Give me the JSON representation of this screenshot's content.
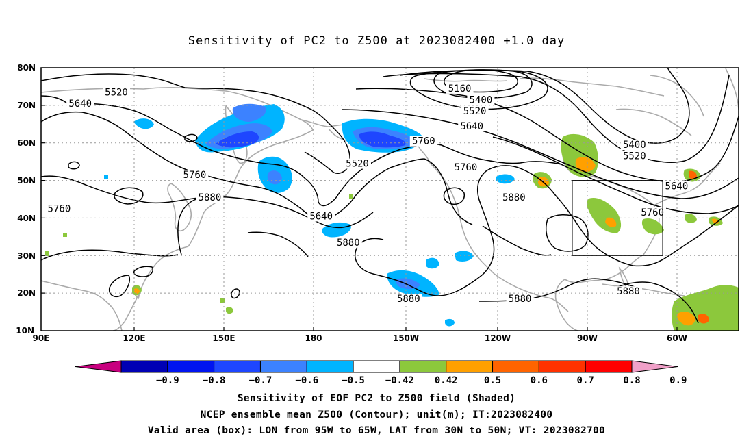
{
  "title": "Sensitivity of PC2 to Z500 at 2023082400 +1.0 day",
  "map": {
    "lat_labels": [
      "80N",
      "70N",
      "60N",
      "50N",
      "40N",
      "30N",
      "20N",
      "10N"
    ],
    "lon_labels": [
      "90E",
      "120E",
      "150E",
      "180",
      "150W",
      "120W",
      "90W",
      "60W"
    ],
    "valid_box": {
      "lon_from": "95W",
      "lon_to": "65W",
      "lat_from": "30N",
      "lat_to": "50N"
    }
  },
  "contours": {
    "labels": [
      {
        "text": "5520",
        "lon": 115,
        "lat": 73
      },
      {
        "text": "5640",
        "lon": 103,
        "lat": 70
      },
      {
        "text": "5160",
        "lon": -131,
        "lat": 74
      },
      {
        "text": "5400",
        "lon": -124,
        "lat": 71
      },
      {
        "text": "5520",
        "lon": -126,
        "lat": 68
      },
      {
        "text": "5640",
        "lon": -127,
        "lat": 64
      },
      {
        "text": "5760",
        "lon": -143,
        "lat": 60
      },
      {
        "text": "5520",
        "lon": -165,
        "lat": 54
      },
      {
        "text": "5760",
        "lon": -129,
        "lat": 53
      },
      {
        "text": "5400",
        "lon": -73,
        "lat": 59
      },
      {
        "text": "5520",
        "lon": -73,
        "lat": 56
      },
      {
        "text": "5640",
        "lon": -59,
        "lat": 48
      },
      {
        "text": "5760",
        "lon": 141,
        "lat": 51
      },
      {
        "text": "5880",
        "lon": 146,
        "lat": 45
      },
      {
        "text": "5760",
        "lon": 96,
        "lat": 42
      },
      {
        "text": "5640",
        "lon": -177,
        "lat": 40
      },
      {
        "text": "5880",
        "lon": -113,
        "lat": 45
      },
      {
        "text": "5760",
        "lon": -67,
        "lat": 41
      },
      {
        "text": "5880",
        "lon": -168,
        "lat": 33
      },
      {
        "text": "5880",
        "lon": -148,
        "lat": 18
      },
      {
        "text": "5880",
        "lon": -111,
        "lat": 18
      },
      {
        "text": "5880",
        "lon": -75,
        "lat": 20
      }
    ]
  },
  "colorbar": {
    "labels": [
      "−0.9",
      "−0.8",
      "−0.7",
      "−0.6",
      "−0.5",
      "−0.42",
      "0.42",
      "0.5",
      "0.6",
      "0.7",
      "0.8",
      "0.9"
    ],
    "colors": [
      "#c8007f",
      "#0000b4",
      "#0014f0",
      "#1e46ff",
      "#3c82ff",
      "#00b4ff",
      "#ffffff",
      "#8cc83c",
      "#ffa000",
      "#ff6400",
      "#ff3200",
      "#ff0000",
      "#f0a0c8"
    ]
  },
  "footer": {
    "line1": "Sensitivity of EOF PC2 to Z500 field (Shaded)",
    "line2": "NCEP ensemble mean Z500 (Contour); unit(m); IT:2023082400",
    "line3": "Valid area (box): LON from 95W to 65W, LAT from 30N to 50N; VT: 2023082700"
  }
}
